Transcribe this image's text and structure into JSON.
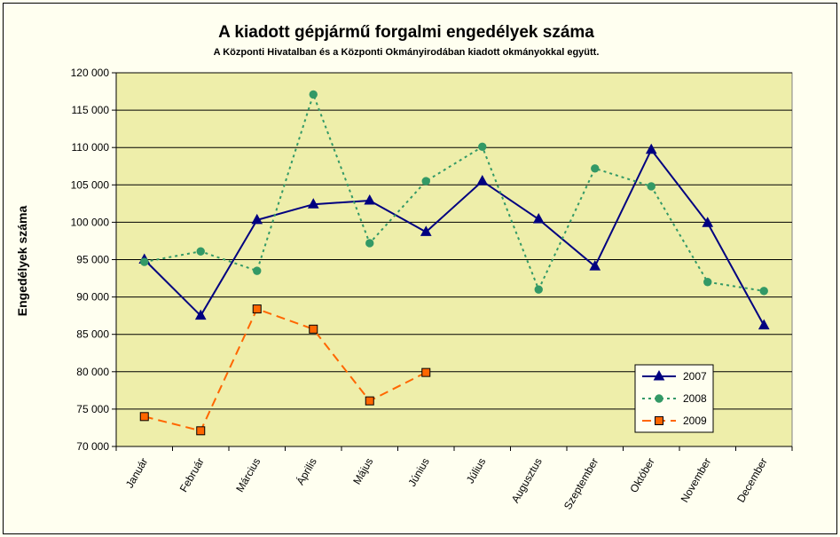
{
  "chart_data": {
    "type": "line",
    "title": "A  kiadott gépjármű forgalmi engedélyek száma",
    "subtitle": "A  Központi Hivatalban és a Központi Okmányirodában kiadott okmányokkal együtt.",
    "xlabel": "",
    "ylabel": "Engedélyek száma",
    "ylim": [
      70000,
      120000
    ],
    "ytick_step": 5000,
    "ytick_labels": [
      "70 000",
      "75 000",
      "80 000",
      "85 000",
      "90 000",
      "95 000",
      "100 000",
      "105 000",
      "110 000",
      "115 000",
      "120 000"
    ],
    "grid": true,
    "legend_position": "lower-right",
    "plot_background": "#EEEEAA",
    "categories": [
      "Január",
      "Február",
      "Március",
      "Április",
      "Május",
      "Június",
      "Július",
      "Augusztus",
      "Szeptember",
      "Október",
      "November",
      "December"
    ],
    "series": [
      {
        "name": "2007",
        "color": "#000080",
        "marker": "triangle",
        "dash": "solid",
        "values": [
          95000,
          87500,
          100300,
          102400,
          102900,
          98700,
          105500,
          100400,
          94100,
          109700,
          99900,
          86200
        ]
      },
      {
        "name": "2008",
        "color": "#339966",
        "marker": "circle",
        "dash": "dotted",
        "values": [
          94700,
          96100,
          93500,
          117100,
          97200,
          105500,
          110100,
          91000,
          107200,
          104800,
          92000,
          90800
        ]
      },
      {
        "name": "2009",
        "color": "#FF6600",
        "marker": "square",
        "dash": "dashed",
        "values": [
          74000,
          72100,
          88400,
          85700,
          76100,
          79900,
          null,
          null,
          null,
          null,
          null,
          null
        ]
      }
    ]
  }
}
